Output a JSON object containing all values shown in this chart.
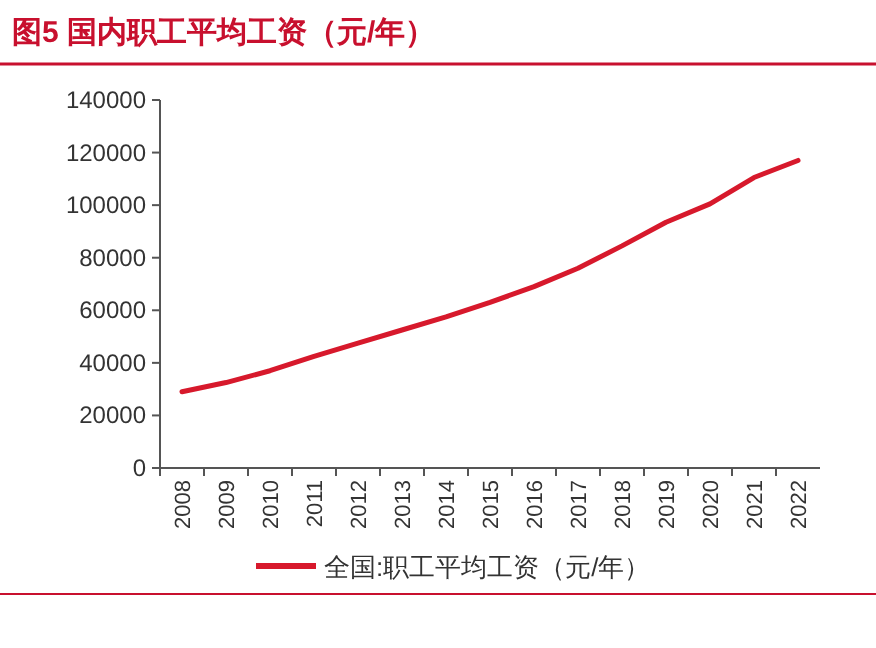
{
  "chart_data": {
    "type": "line",
    "title": "图5  国内职工平均工资（元/年）",
    "categories": [
      "2008",
      "2009",
      "2010",
      "2011",
      "2012",
      "2013",
      "2014",
      "2015",
      "2016",
      "2017",
      "2018",
      "2019",
      "2020",
      "2021",
      "2022"
    ],
    "series": [
      {
        "name": "全国:职工平均工资（元/年）",
        "color": "#d7192c",
        "values": [
          29000,
          32500,
          37000,
          42500,
          47500,
          52500,
          57500,
          63000,
          69000,
          76000,
          84500,
          93500,
          100500,
          110500,
          117000
        ]
      }
    ],
    "ylim": [
      0,
      140000
    ],
    "yticks": [
      0,
      20000,
      40000,
      60000,
      80000,
      100000,
      120000,
      140000
    ],
    "grid": false,
    "legend": "bottom",
    "marker": "none",
    "line_style": "solid"
  }
}
